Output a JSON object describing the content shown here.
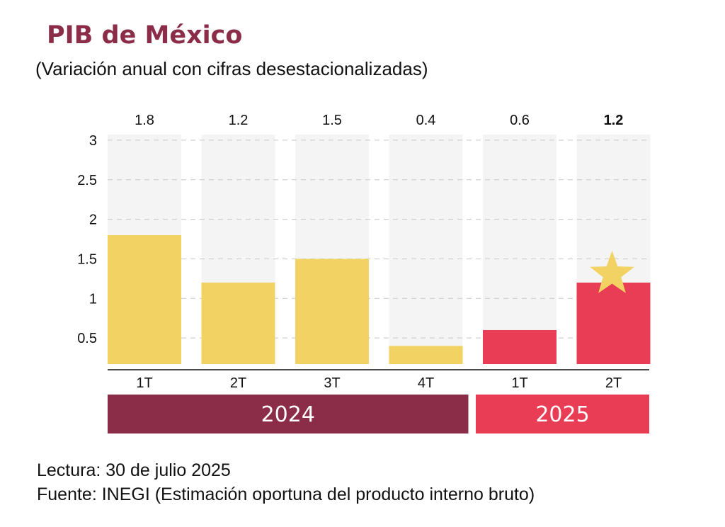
{
  "chart_data": {
    "type": "bar",
    "title": "PIB de México",
    "subtitle": "(Variación anual con cifras desestacionalizadas)",
    "categories": [
      "1T",
      "2T",
      "3T",
      "4T",
      "1T",
      "2T"
    ],
    "values": [
      1.8,
      1.2,
      1.5,
      0.4,
      0.6,
      1.2
    ],
    "value_labels": [
      "1.8",
      "1.2",
      "1.5",
      "0.4",
      "0.6",
      "1.2"
    ],
    "highlight_index": 5,
    "groups": [
      {
        "label": "2024",
        "start": 0,
        "end": 3,
        "color": "#8b2c48"
      },
      {
        "label": "2025",
        "start": 4,
        "end": 5,
        "color": "#e93d55"
      }
    ],
    "bar_colors": [
      "#f1d262",
      "#f1d262",
      "#f1d262",
      "#f1d262",
      "#e93d55",
      "#e93d55"
    ],
    "background_bar_color": "#f4f4f4",
    "yticks": [
      0.5,
      1,
      1.5,
      2,
      2.5,
      3
    ],
    "ytick_labels": [
      "0.5",
      "1",
      "1.5",
      "2",
      "2.5",
      "3"
    ],
    "ylim": [
      0,
      3
    ],
    "grid": true,
    "grid_style": "dashed",
    "star_icon": "star-icon",
    "star_color": "#f1d262"
  },
  "footer": {
    "reading": "Lectura: 30 de julio 2025",
    "source": "Fuente: INEGI (Estimación oportuna del producto interno bruto)"
  }
}
